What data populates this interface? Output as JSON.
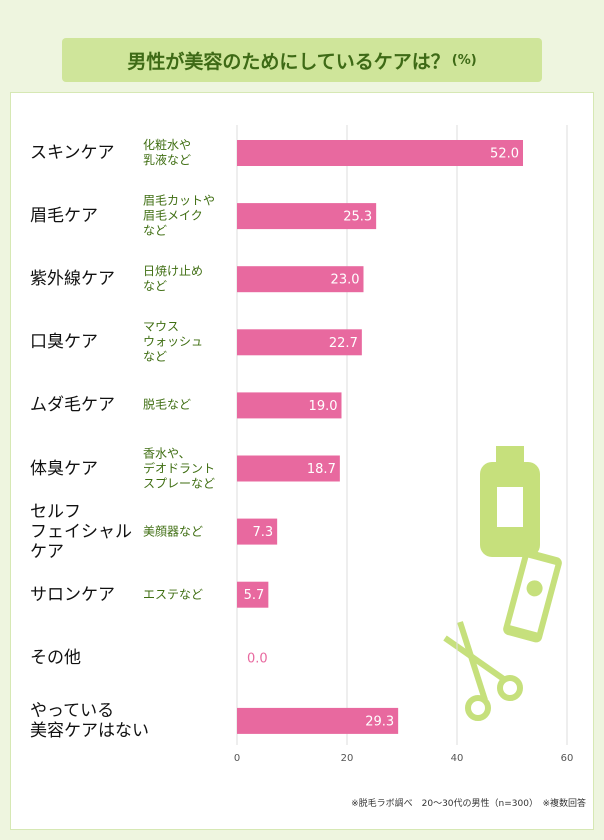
{
  "chart_data": {
    "type": "bar",
    "orientation": "horizontal",
    "title": "男性が美容のためにしているケアは？",
    "title_unit": "(%)",
    "categories": [
      "スキンケア",
      "眉毛ケア",
      "紫外線ケア",
      "口臭ケア",
      "ムダ毛ケア",
      "体臭ケア",
      "セルフ\nフェイシャル\nケア",
      "サロンケア",
      "その他",
      "やっている\n美容ケアはない"
    ],
    "descriptions": [
      "化粧水や\n乳液など",
      "眉毛カットや\n眉毛メイク\nなど",
      "日焼け止め\nなど",
      "マウス\nウォッシュ\nなど",
      "脱毛など",
      "香水や、\nデオドラント\nスプレーなど",
      "美顔器など",
      "エステなど",
      null,
      null
    ],
    "values": [
      52,
      25.3,
      23,
      22.7,
      19,
      18.7,
      7.3,
      5.7,
      0,
      29.3
    ],
    "value_labels": [
      "52.0",
      "25.3",
      "23.0",
      "22.7",
      "19.0",
      "18.7",
      "7.3",
      "5.7",
      "0.0",
      "29.3"
    ],
    "color": "#e8699f",
    "xlim": [
      0,
      60
    ],
    "xticks": [
      0,
      20,
      40,
      60
    ],
    "grid": true,
    "footnote": "※脱毛ラボ調べ　20〜30代の男性（n=300）　※複数回答"
  }
}
